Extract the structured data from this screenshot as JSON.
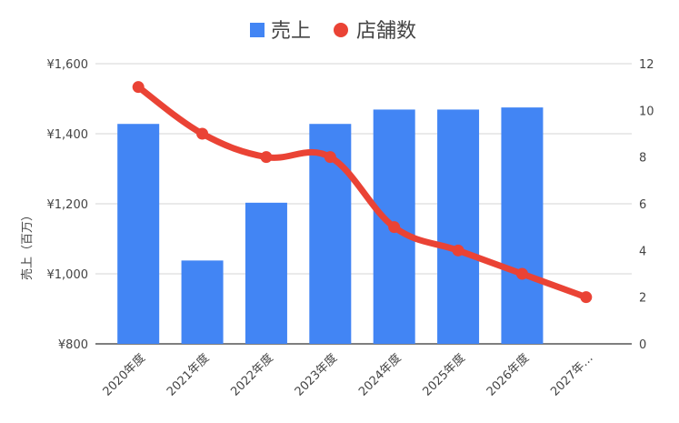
{
  "chart_data": {
    "type": "bar+line",
    "categories": [
      "2020年度",
      "2021年度",
      "2022年度",
      "2023年度",
      "2024年度",
      "2025年度",
      "2026年度",
      "2027年…"
    ],
    "series": [
      {
        "name": "売上",
        "type": "bar",
        "axis": "left",
        "color": "#4285f4",
        "values": [
          1428,
          1038,
          1203,
          1428,
          1469,
          1469,
          1475,
          null
        ]
      },
      {
        "name": "店舗数",
        "type": "line",
        "axis": "right",
        "color": "#ea4335",
        "values": [
          11,
          9,
          8,
          8,
          5,
          4,
          3,
          2
        ]
      }
    ],
    "ylabel": "売上（百万）",
    "y_left": {
      "min": 800,
      "max": 1600,
      "ticks": [
        800,
        1000,
        1200,
        1400,
        1600
      ],
      "tick_labels": [
        "¥800",
        "¥1,000",
        "¥1,200",
        "¥1,400",
        "¥1,600"
      ]
    },
    "y_right": {
      "min": 0,
      "max": 12,
      "ticks": [
        0,
        2,
        4,
        6,
        8,
        10,
        12
      ],
      "tick_labels": [
        "0",
        "2",
        "4",
        "6",
        "8",
        "10",
        "12"
      ]
    },
    "legend_position": "top",
    "grid": true
  }
}
